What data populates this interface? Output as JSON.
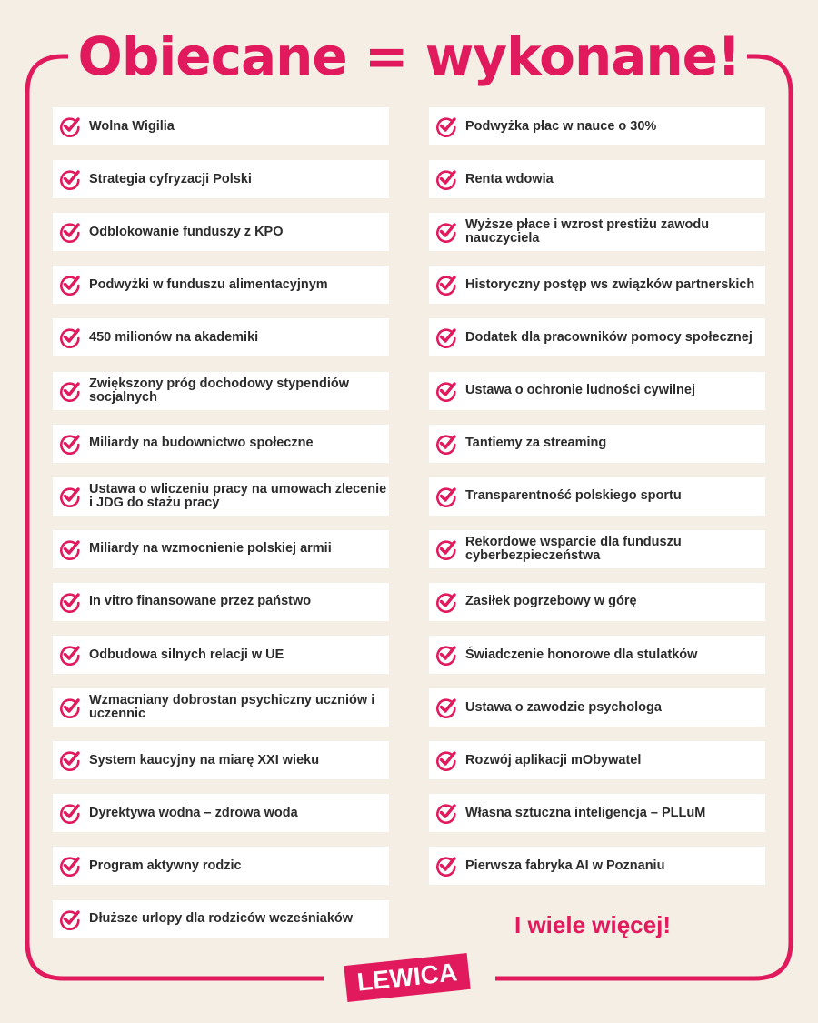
{
  "title": "Obiecane = wykonane!",
  "accent_color": "#e01a5c",
  "item_icon": "check-circle-icon",
  "left_items": [
    "Wolna Wigilia",
    "Strategia cyfryzacji Polski",
    "Odblokowanie funduszy z KPO",
    "Podwyżki w funduszu alimentacyjnym",
    "450 milionów na akademiki",
    "Zwiększony próg dochodowy stypendiów socjalnych",
    "Miliardy na budownictwo społeczne",
    "Ustawa o wliczeniu pracy na umowach zlecenie i JDG do stażu pracy",
    "Miliardy na wzmocnienie polskiej armii",
    "In vitro finansowane przez państwo",
    "Odbudowa silnych relacji w UE",
    "Wzmacniany dobrostan psychiczny uczniów i uczennic",
    "System kaucyjny na miarę XXI wieku",
    "Dyrektywa wodna – zdrowa woda",
    "Program aktywny rodzic",
    "Dłuższe urlopy dla rodziców wcześniaków"
  ],
  "right_items": [
    "Podwyżka płac w nauce o 30%",
    "Renta wdowia",
    "Wyższe płace i wzrost prestiżu zawodu nauczyciela",
    "Historyczny postęp ws związków partnerskich",
    "Dodatek dla pracowników pomocy społecznej",
    "Ustawa o ochronie ludności cywilnej",
    "Tantiemy za streaming",
    "Transparentność polskiego sportu",
    "Rekordowe wsparcie dla funduszu cyberbezpieczeństwa",
    "Zasiłek pogrzebowy w górę",
    "Świadczenie honorowe dla stulatków",
    "Ustawa o zawodzie psychologa",
    "Rozwój aplikacji mObywatel",
    "Własna sztuczna inteligencja – PLLuM",
    "Pierwsza fabryka AI w Poznaniu"
  ],
  "more": "I wiele więcej!",
  "logo": "LEWICA"
}
